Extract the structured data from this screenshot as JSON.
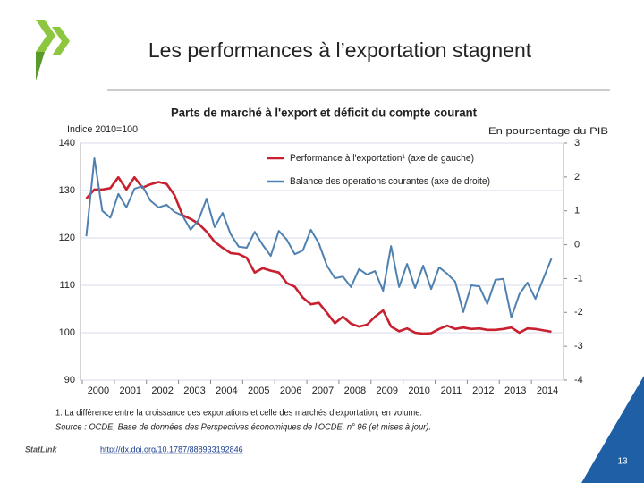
{
  "slide": {
    "title": "Les performances à l’exportation stagnent",
    "logo_text": "StatLink",
    "link": "http://dx.doi.org/10.1787/888933192846",
    "page_number": 13
  },
  "chart_data": {
    "type": "line",
    "title": "Parts de marché à l'export et déficit du compte courant",
    "y_label": "Indice 2010=100",
    "y2_label": "En pourcentage du PIB",
    "categories": [
      "2000",
      null,
      null,
      null,
      "2001",
      null,
      null,
      null,
      "2002",
      null,
      null,
      null,
      "2003",
      null,
      null,
      null,
      "2004",
      null,
      null,
      null,
      "2005",
      null,
      null,
      null,
      "2006",
      null,
      null,
      null,
      "2007",
      null,
      null,
      null,
      "2008",
      null,
      null,
      null,
      "2009",
      null,
      null,
      null,
      "2010",
      null,
      null,
      null,
      "2011",
      null,
      null,
      null,
      "2012",
      null,
      null,
      null,
      "2013",
      null,
      null,
      null,
      "2014",
      null,
      null
    ],
    "ylim": [
      90,
      140
    ],
    "yticks": [
      90,
      100,
      110,
      120,
      130,
      140
    ],
    "y2lim": [
      -4,
      3
    ],
    "y2ticks": [
      -4,
      -3,
      -2,
      -1,
      0,
      1,
      2,
      3
    ],
    "grid": true,
    "series": [
      {
        "name": "Performance à l'exportation¹ (axe de gauche)",
        "color": "#c8202f",
        "axis": "y",
        "values": [
          128.3,
          130.2,
          130.2,
          130.5,
          132.8,
          130.2,
          132.8,
          130.6,
          131.3,
          131.8,
          131.4,
          129,
          124.8,
          124,
          123,
          121.3,
          119.2,
          117.9,
          116.8,
          116.6,
          115.8,
          112.7,
          113.6,
          113.1,
          112.7,
          110.5,
          109.7,
          107.4,
          106,
          106.3,
          104.2,
          102,
          103.4,
          101.9,
          101.3,
          101.7,
          103.4,
          104.7,
          101.3,
          100.3,
          100.9,
          100,
          99.8,
          99.9,
          100.8,
          101.5,
          100.8,
          101.1,
          100.8,
          100.9,
          100.6,
          100.6,
          100.8,
          101.1,
          100,
          100.9,
          100.8,
          100.5,
          100.2
        ]
      },
      {
        "name": "Balance des operations courantes (axe de droite)",
        "color": "#4f81b0",
        "axis": "y2",
        "values": [
          0.25,
          2.55,
          1.0,
          0.8,
          1.5,
          1.1,
          1.65,
          1.73,
          1.3,
          1.1,
          1.18,
          0.97,
          0.86,
          0.44,
          0.73,
          1.36,
          0.52,
          0.94,
          0.31,
          -0.06,
          -0.09,
          0.38,
          -0.01,
          -0.33,
          0.41,
          0.15,
          -0.28,
          -0.17,
          0.44,
          0.04,
          -0.62,
          -0.99,
          -0.94,
          -1.25,
          -0.72,
          -0.88,
          -0.78,
          -1.36,
          -0.04,
          -1.25,
          -0.57,
          -1.28,
          -0.62,
          -1.31,
          -0.67,
          -0.86,
          -1.09,
          -1.99,
          -1.2,
          -1.23,
          -1.75,
          -1.04,
          -1.01,
          -2.15,
          -1.46,
          -1.12,
          -1.6,
          -0.99,
          -0.41
        ]
      }
    ],
    "footnotes": [
      "1. La différence entre la croissance des exportations et celle des marchés d'exportation, en volume.",
      "Source : OCDE, Base de données des Perspectives économiques de l'OCDE, n° 96 (et mises à jour)."
    ]
  }
}
